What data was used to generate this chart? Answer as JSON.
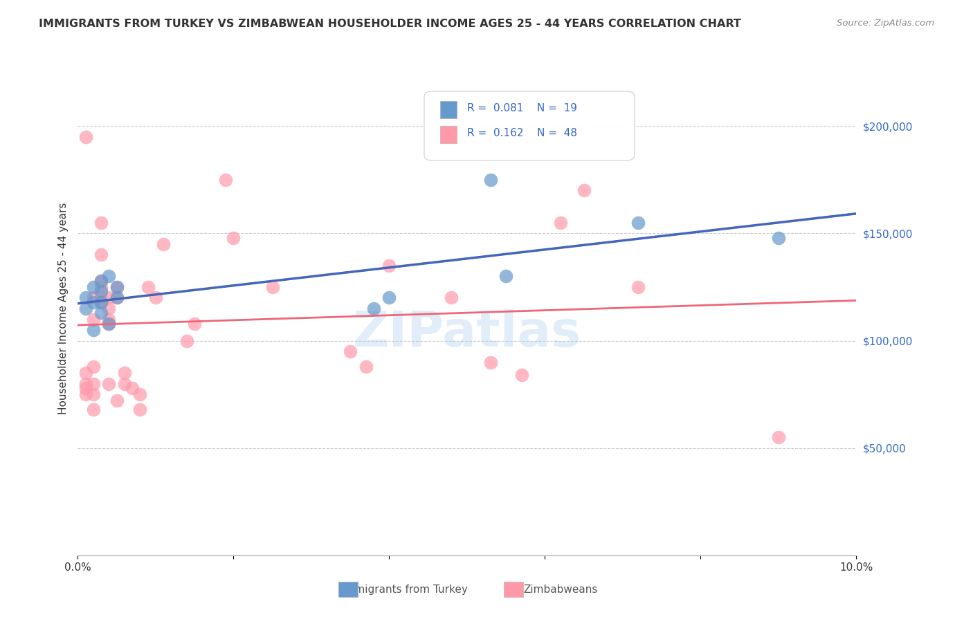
{
  "title": "IMMIGRANTS FROM TURKEY VS ZIMBABWEAN HOUSEHOLDER INCOME AGES 25 - 44 YEARS CORRELATION CHART",
  "source": "Source: ZipAtlas.com",
  "xlabel_bottom": "",
  "ylabel": "Householder Income Ages 25 - 44 years",
  "xlim": [
    0.0,
    0.1
  ],
  "ylim": [
    0,
    230000
  ],
  "xticks": [
    0.0,
    0.02,
    0.04,
    0.06,
    0.08,
    0.1
  ],
  "xticklabels": [
    "0.0%",
    "",
    "",
    "",
    "",
    "10.0%"
  ],
  "yticks_right": [
    50000,
    100000,
    150000,
    200000
  ],
  "ytick_labels_right": [
    "$50,000",
    "$100,000",
    "$150,000",
    "$200,000"
  ],
  "legend_r1": "R = 0.081",
  "legend_n1": "N = 19",
  "legend_r2": "R = 0.162",
  "legend_n2": "N = 48",
  "blue_color": "#6699CC",
  "pink_color": "#FF99AA",
  "trend_blue": "#4466BB",
  "trend_pink": "#EE6677",
  "trend_blue_dashed": "#AABBDD",
  "watermark": "ZIPatlas",
  "turkey_x": [
    0.001,
    0.001,
    0.002,
    0.002,
    0.002,
    0.003,
    0.003,
    0.003,
    0.003,
    0.004,
    0.004,
    0.005,
    0.005,
    0.038,
    0.04,
    0.053,
    0.055,
    0.072,
    0.09
  ],
  "turkey_y": [
    120000,
    115000,
    125000,
    118000,
    105000,
    128000,
    123000,
    118000,
    113000,
    130000,
    108000,
    125000,
    120000,
    115000,
    120000,
    175000,
    130000,
    155000,
    148000
  ],
  "zimbabwe_x": [
    0.001,
    0.001,
    0.001,
    0.001,
    0.001,
    0.002,
    0.002,
    0.002,
    0.002,
    0.002,
    0.002,
    0.003,
    0.003,
    0.003,
    0.003,
    0.003,
    0.003,
    0.004,
    0.004,
    0.004,
    0.004,
    0.004,
    0.005,
    0.005,
    0.005,
    0.006,
    0.006,
    0.007,
    0.008,
    0.008,
    0.009,
    0.01,
    0.011,
    0.014,
    0.015,
    0.019,
    0.02,
    0.025,
    0.035,
    0.037,
    0.04,
    0.048,
    0.053,
    0.057,
    0.062,
    0.065,
    0.072,
    0.09
  ],
  "zimbabwe_y": [
    195000,
    80000,
    78000,
    85000,
    75000,
    120000,
    110000,
    88000,
    80000,
    75000,
    68000,
    155000,
    140000,
    128000,
    125000,
    120000,
    118000,
    120000,
    115000,
    110000,
    108000,
    80000,
    125000,
    120000,
    72000,
    85000,
    80000,
    78000,
    75000,
    68000,
    125000,
    120000,
    145000,
    100000,
    108000,
    175000,
    148000,
    125000,
    95000,
    88000,
    135000,
    120000,
    90000,
    84000,
    155000,
    170000,
    125000,
    55000
  ]
}
